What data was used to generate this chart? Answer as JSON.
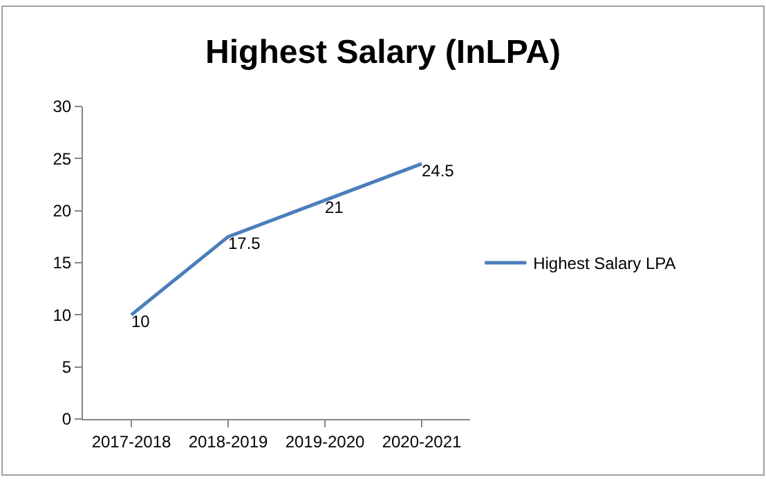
{
  "chart_data": {
    "type": "line",
    "title": "Highest Salary (InLPA)",
    "categories": [
      "2017-2018",
      "2018-2019",
      "2019-2020",
      "2020-2021"
    ],
    "series": [
      {
        "name": "Highest Salary LPA",
        "color": "#4a7ebb",
        "values": [
          10,
          17.5,
          21,
          24.5
        ]
      }
    ],
    "ylim": [
      0,
      30
    ],
    "yticks": [
      0,
      5,
      10,
      15,
      20,
      25,
      30
    ],
    "grid": false,
    "legend": "right",
    "data_labels": true,
    "marker": "none",
    "line_style": "solid"
  }
}
